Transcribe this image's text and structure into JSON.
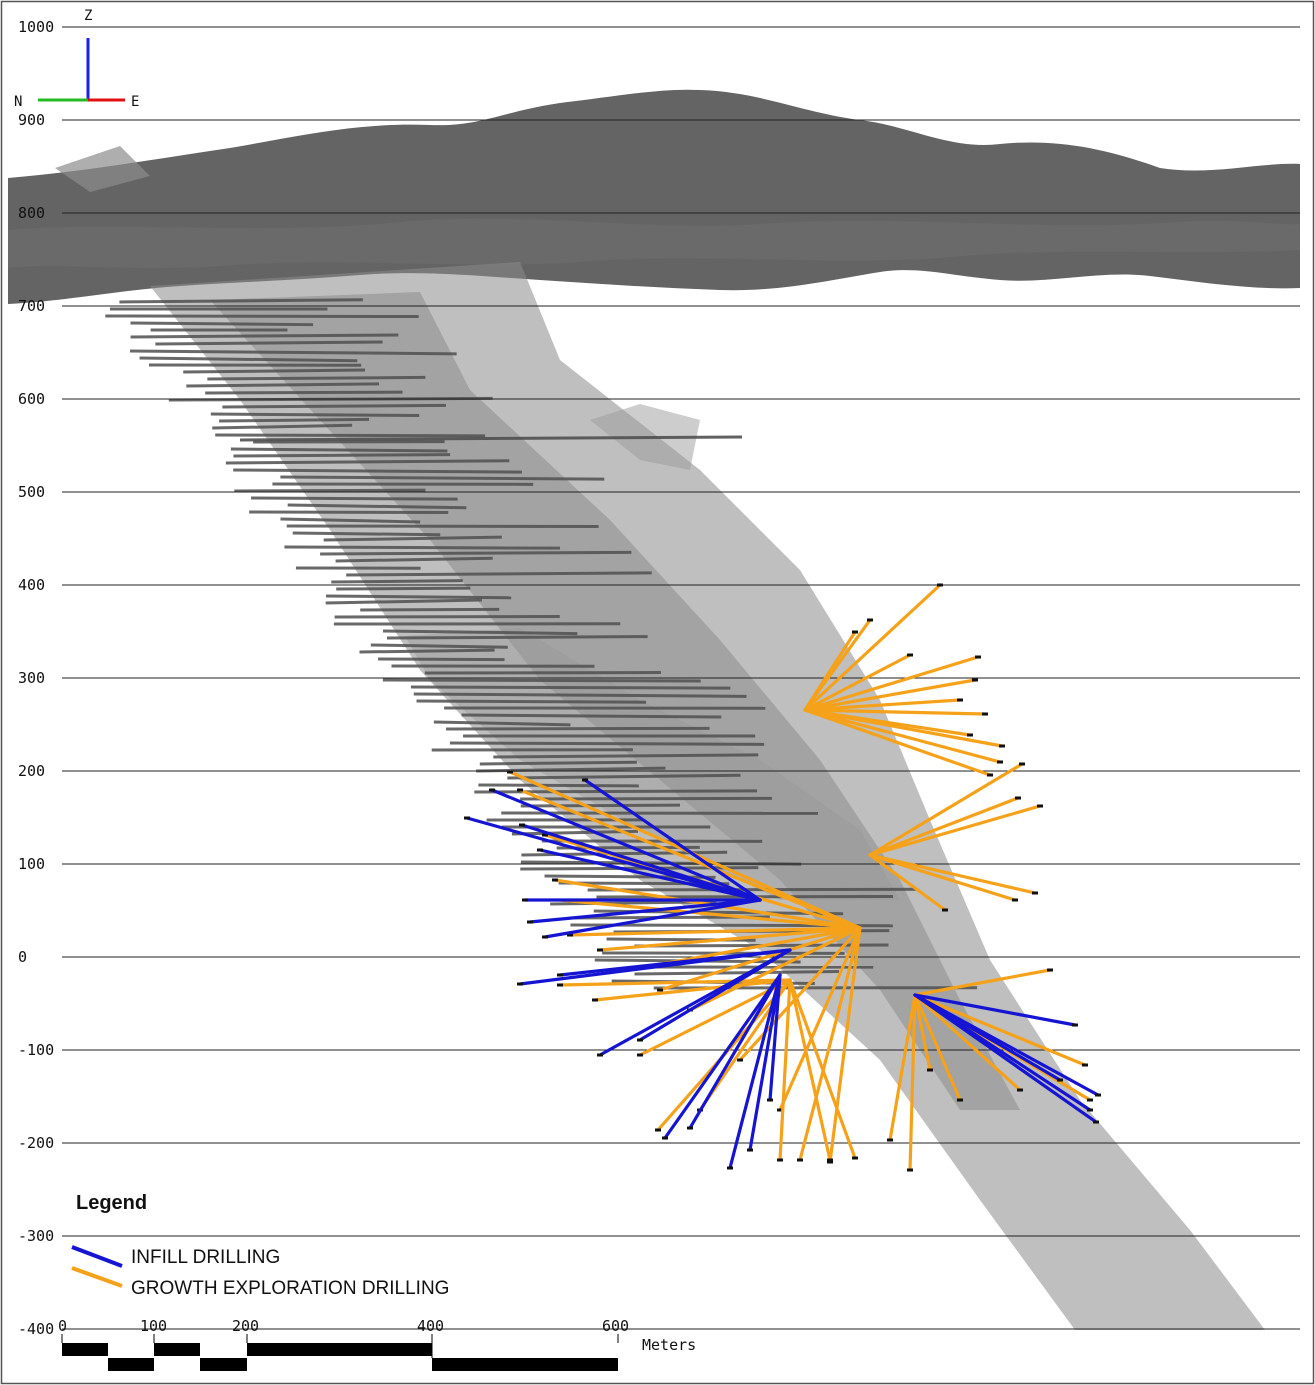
{
  "section": {
    "elevation_labels": [
      "1000",
      "900",
      "800",
      "700",
      "600",
      "500",
      "400",
      "300",
      "200",
      "100",
      "0",
      "-100",
      "-200",
      "-300",
      "-400"
    ],
    "elevation_values": [
      1000,
      900,
      800,
      700,
      600,
      500,
      400,
      300,
      200,
      100,
      0,
      -100,
      -200,
      -300,
      -400
    ]
  },
  "orientation": {
    "up_label": "Z",
    "left_label": "N",
    "right_label": "E",
    "up_color": "#1a22ee",
    "left_color": "#22bb22",
    "right_color": "#e01010"
  },
  "legend": {
    "title": "Legend",
    "items": [
      {
        "label": "INFILL DRILLING",
        "color": "#1414d2"
      },
      {
        "label": "GROWTH EXPLORATION DRILLING",
        "color": "#f5a21a"
      }
    ]
  },
  "scale_bar": {
    "ticks": [
      "0",
      "100",
      "200",
      "400",
      "600"
    ],
    "units": "Meters"
  },
  "colors": {
    "surface_layer": "#5e5e5e",
    "ore_body": "#8a8a8a",
    "existing_drilling": "#505050",
    "infill": "#1414d2",
    "growth": "#f5a21a",
    "grid_line": "#222222"
  }
}
